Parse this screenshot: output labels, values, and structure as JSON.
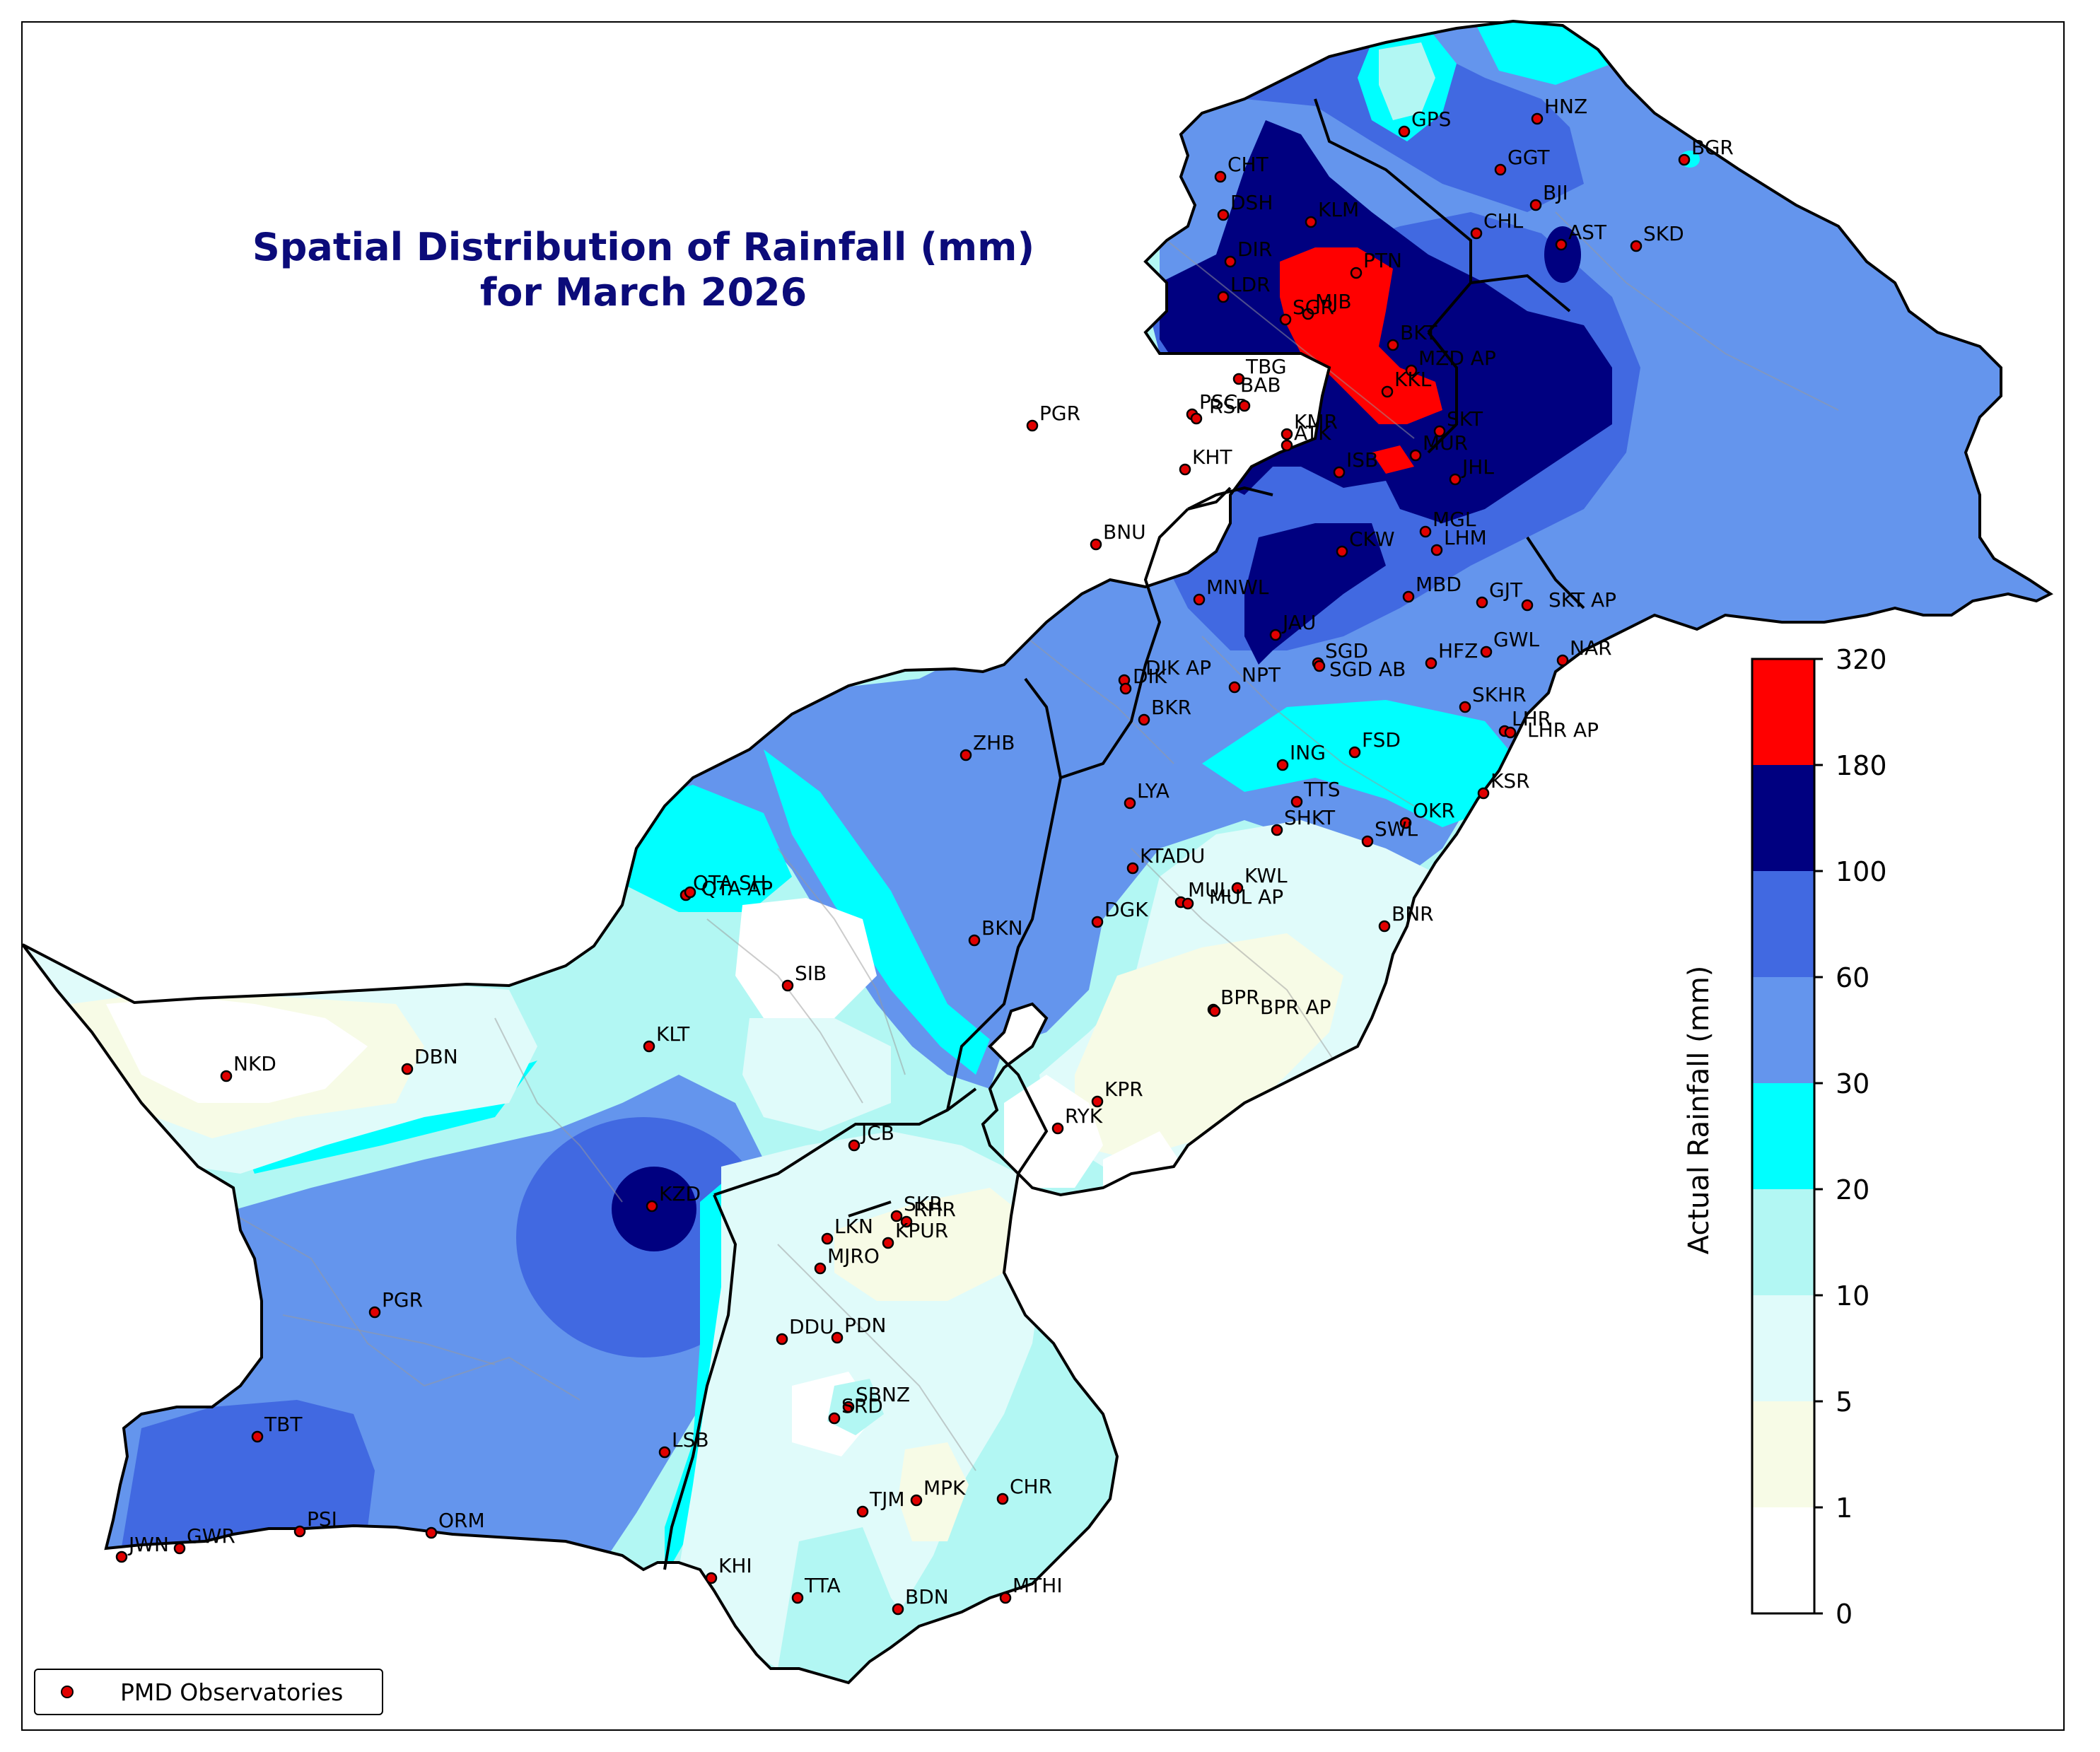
{
  "title": {
    "line1": "Spatial Distribution of Rainfall (mm)",
    "line2": "for March 2026"
  },
  "legend": {
    "label": "PMD Observatories",
    "marker_color": "#e00000"
  },
  "colorbar": {
    "title": "Actual Rainfall (mm)",
    "ticks": [
      "320",
      "180",
      "100",
      "60",
      "30",
      "20",
      "10",
      "5",
      "1",
      "0"
    ],
    "bins": [
      {
        "from": "0",
        "to": "1",
        "color": "#ffffff"
      },
      {
        "from": "1",
        "to": "5",
        "color": "#f7fbe6"
      },
      {
        "from": "5",
        "to": "10",
        "color": "#e0fbfa"
      },
      {
        "from": "10",
        "to": "20",
        "color": "#b2f7f3"
      },
      {
        "from": "20",
        "to": "30",
        "color": "#00ffff"
      },
      {
        "from": "30",
        "to": "60",
        "color": "#6495ed"
      },
      {
        "from": "60",
        "to": "100",
        "color": "#4169e1"
      },
      {
        "from": "100",
        "to": "180",
        "color": "#000080"
      },
      {
        "from": "180",
        "to": "320",
        "color": "#ff0000"
      }
    ]
  },
  "stations": [
    "GPS",
    "HNZ",
    "BGR",
    "CHT",
    "GGT",
    "DSH",
    "BJI",
    "KLM",
    "CHL",
    "AST",
    "SKD",
    "DIR",
    "PTN",
    "LDR",
    "MJB",
    "SGR",
    "BKT",
    "MZD AP",
    "TBG",
    "KKL",
    "PSC",
    "RSP",
    "BAB",
    "PGR",
    "KHT",
    "KMR",
    "ATK",
    "MUR",
    "SKT",
    "ISB",
    "JHL",
    "MGL",
    "BNU",
    "CKW",
    "LHM",
    "MBD",
    "GJT",
    "SKT AP",
    "MNWL",
    "JAU",
    "SGD",
    "SGD AB",
    "HFZ",
    "GWL",
    "NAR",
    "DIK AP",
    "DIK",
    "NPT",
    "SKHR",
    "LHR",
    "LHR AP",
    "BKR",
    "ZHB",
    "ING",
    "FSD",
    "TTS",
    "LYA",
    "KSR",
    "SHKT",
    "OKR",
    "SWL",
    "QTA SH",
    "QTA AP",
    "KTADU",
    "KWL",
    "MUL",
    "MUL AP",
    "DGK",
    "BNR",
    "BKN",
    "SIB",
    "BPR",
    "BPR AP",
    "KLT",
    "NKD",
    "DBN",
    "KPR",
    "RYK",
    "JCB",
    "KZD",
    "SKR",
    "RHR",
    "LKN",
    "KPUR",
    "MJRO",
    "PGR",
    "DDU",
    "PDN",
    "SBNZ",
    "SRD",
    "TBT",
    "LSB",
    "PSI",
    "ORM",
    "GWR",
    "JWN",
    "TJM",
    "MPK",
    "CHR",
    "KHI",
    "TTA",
    "BDN",
    "MTHI"
  ]
}
